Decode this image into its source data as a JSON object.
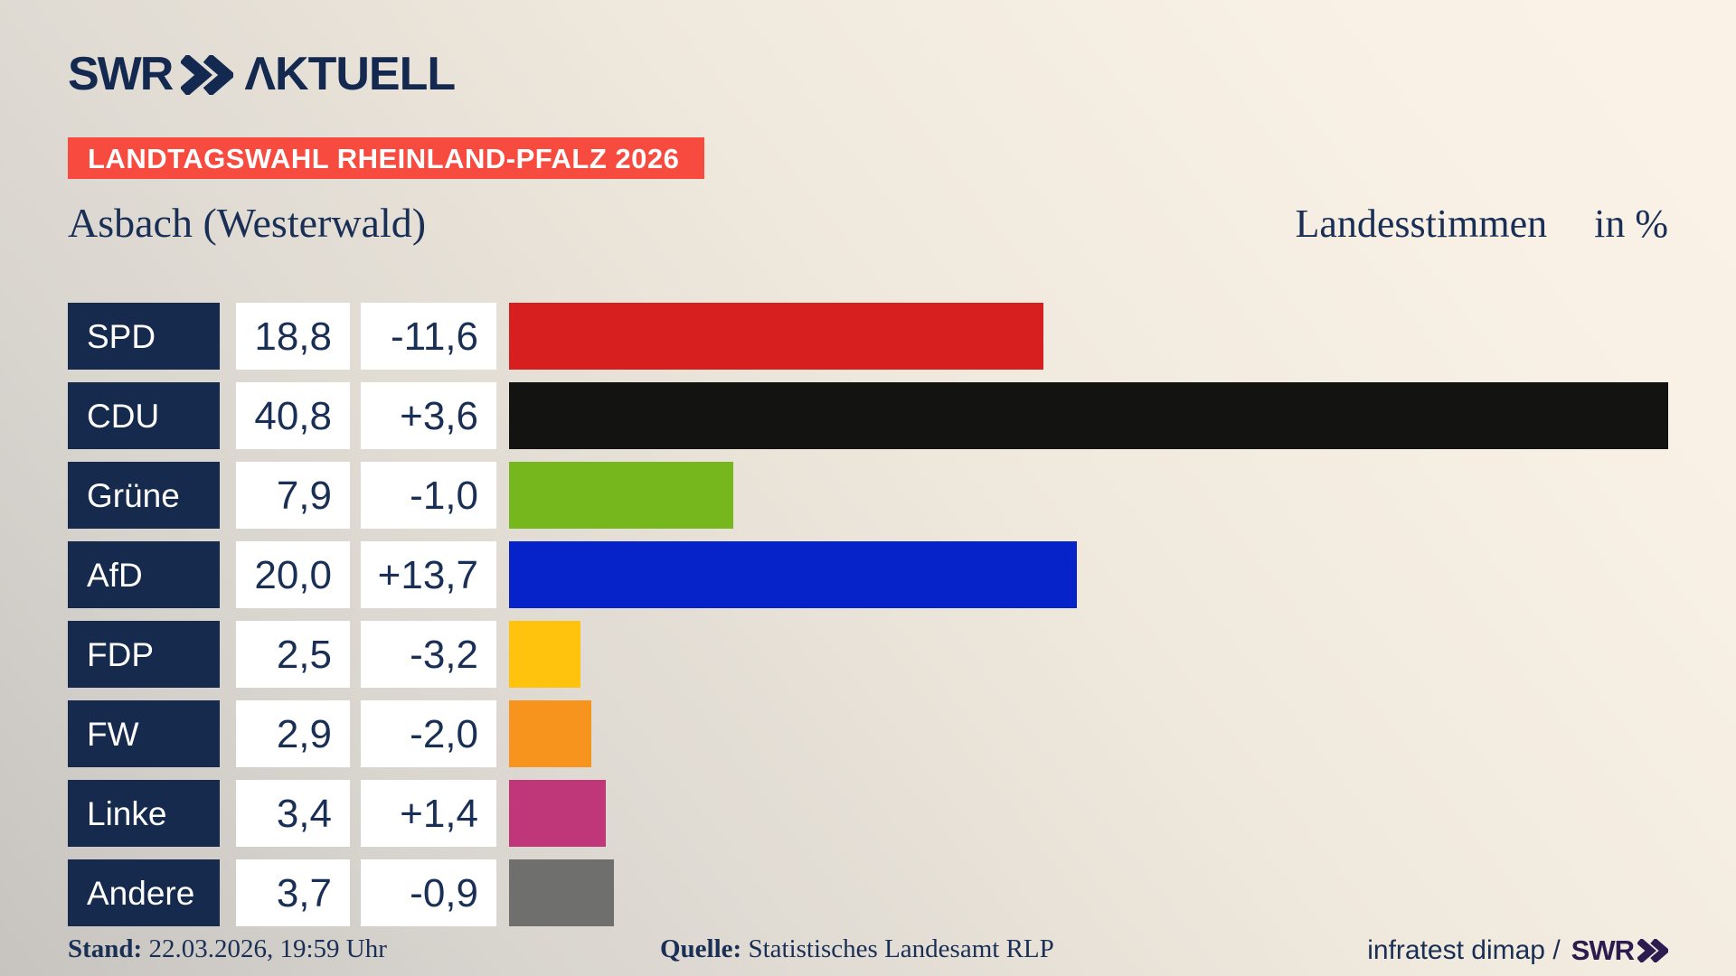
{
  "brand": {
    "swr": "SWR",
    "aktuell": "ΛKTUELL",
    "color": "#14294F"
  },
  "banner": {
    "text": "LANDTAGSWAHL RHEINLAND-PFALZ 2026",
    "bg": "#F84B40",
    "text_color": "#FFFFFF"
  },
  "header": {
    "title": "Asbach (Westerwald)",
    "measure": "Landesstimmen",
    "unit": "in %"
  },
  "chart_data": {
    "type": "bar",
    "orientation": "horizontal",
    "title": "Landtagswahl Rheinland-Pfalz 2026 — Asbach (Westerwald), Landesstimmen in %",
    "categories": [
      "SPD",
      "CDU",
      "Grüne",
      "AfD",
      "FDP",
      "FW",
      "Linke",
      "Andere"
    ],
    "values": [
      18.8,
      40.8,
      7.9,
      20.0,
      2.5,
      2.9,
      3.4,
      3.7
    ],
    "changes": [
      -11.6,
      3.6,
      -1.0,
      13.7,
      -3.2,
      -2.0,
      1.4,
      -0.9
    ],
    "value_labels": [
      "18,8",
      "40,8",
      "7,9",
      "20,0",
      "2,5",
      "2,9",
      "3,4",
      "3,7"
    ],
    "change_labels": [
      "-11,6",
      "+3,6",
      "-1,0",
      "+13,7",
      "-3,2",
      "-2,0",
      "+1,4",
      "-0,9"
    ],
    "bar_colors": [
      "#D71F1F",
      "#131312",
      "#76B71D",
      "#0523C8",
      "#FFC30E",
      "#F7941E",
      "#BF3779",
      "#6F6F6E"
    ],
    "xlim": [
      0,
      40.8
    ],
    "legend": "none",
    "grid": false,
    "label_box_color": "#152A4D",
    "value_text_color": "#1A2F55"
  },
  "footer": {
    "stand_label": "Stand:",
    "stand_value": "22.03.2026, 19:59 Uhr",
    "quelle_label": "Quelle:",
    "quelle_value": "Statistisches Landesamt RLP",
    "credit_text": "infratest dimap /",
    "credit_brand": "SWR",
    "credit_brand_color": "#2B1B4F"
  }
}
